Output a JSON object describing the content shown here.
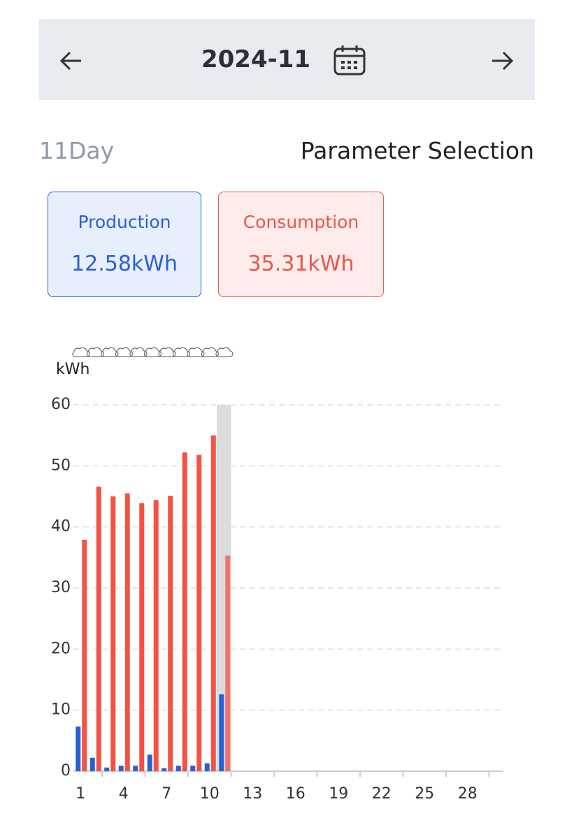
{
  "header": {
    "month": "2024-11"
  },
  "day_label": "11Day",
  "parameter_selection": "Parameter Selection",
  "cards": [
    {
      "value": "12.58kWh"
    },
    {
      "value": "35.31kWh"
    }
  ],
  "chart_data": {
    "type": "bar",
    "y_label": "kWh",
    "categories": [
      "1",
      null,
      null,
      "4",
      null,
      null,
      "7",
      null,
      null,
      "10",
      null,
      null,
      "13",
      null,
      null,
      "16",
      null,
      null,
      "19",
      null,
      null,
      "22",
      null,
      null,
      "25",
      null,
      null,
      "28",
      null,
      null
    ],
    "series": [
      {
        "name": "Production",
        "color": "#2a5fd6",
        "values": [
          7.3,
          2.2,
          0.6,
          0.9,
          0.9,
          2.7,
          0.5,
          0.9,
          0.9,
          1.3,
          12.58,
          null,
          null,
          null,
          null,
          null,
          null,
          null,
          null,
          null,
          null,
          null,
          null,
          null,
          null,
          null,
          null,
          null,
          null,
          null
        ]
      },
      {
        "name": "Consumption",
        "color": "#f55145",
        "values": [
          37.9,
          46.6,
          45.0,
          45.5,
          43.9,
          44.4,
          45.1,
          52.2,
          51.8,
          55.0,
          35.31,
          null,
          null,
          null,
          null,
          null,
          null,
          null,
          null,
          null,
          null,
          null,
          null,
          null,
          null,
          null,
          null,
          null,
          null,
          null
        ]
      }
    ],
    "ylim": [
      0,
      60
    ],
    "yticks": [
      0,
      10,
      20,
      30,
      40,
      50,
      60
    ],
    "grid": true
  }
}
